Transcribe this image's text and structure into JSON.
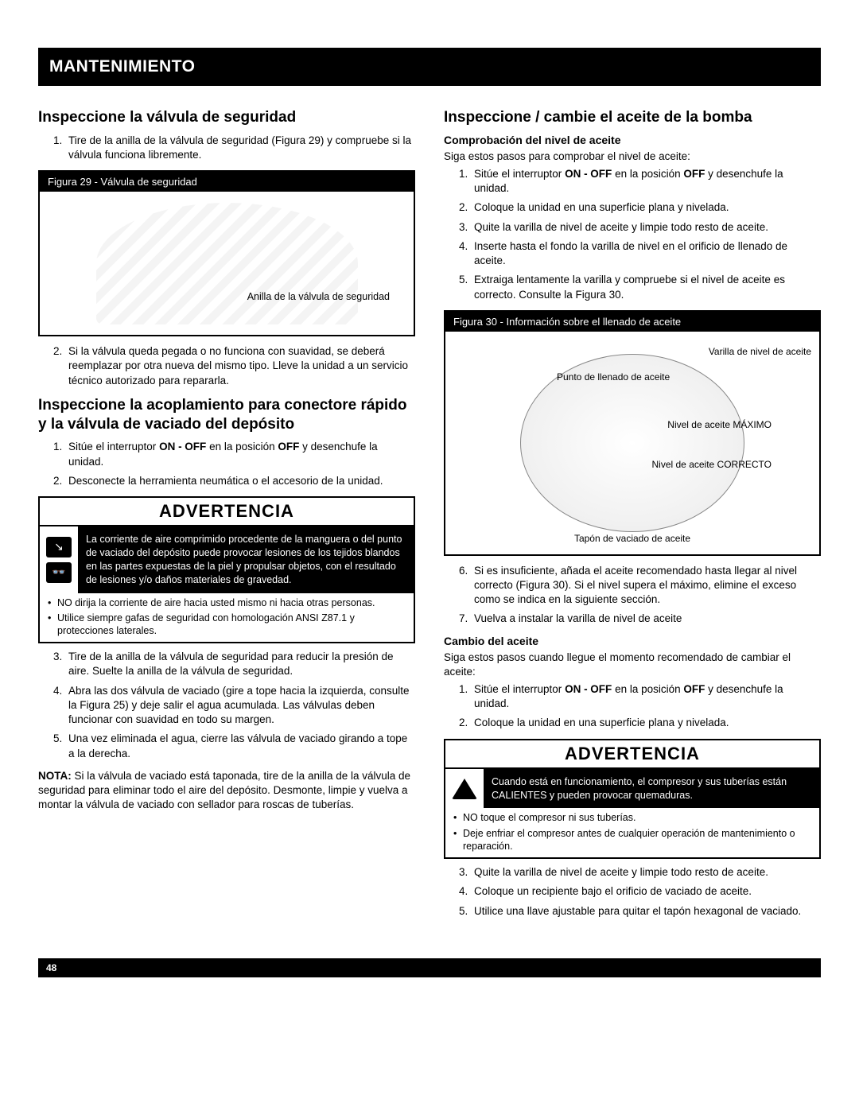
{
  "header": "MANTENIMIENTO",
  "left": {
    "h1": "Inspeccione la válvula de seguridad",
    "l1": [
      "Tire de la anilla de la válvula de seguridad (Figura 29) y compruebe si la válvula funciona libremente."
    ],
    "fig29_title": "Figura 29 - Válvula de seguridad",
    "fig29_label": "Anilla de la válvula de seguridad",
    "l1b": [
      "Si la válvula queda pegada o no funciona con suavidad, se deberá reemplazar por otra nueva del mismo tipo. Lleve la unidad a un servicio técnico autorizado para repararla."
    ],
    "h2": "Inspeccione la acoplamiento para conectore rápido y la válvula de vaciado del depósito",
    "l2": [
      "Sitúe el interruptor ON - OFF en la posición OFF y desenchufe la unidad.",
      "Desconecte la herramienta neumática o el accesorio de la unidad."
    ],
    "warn1_title": "ADVERTENCIA",
    "warn1_text": "La corriente de aire comprimido procedente de la manguera o del punto de vaciado del depósito puede provocar lesiones de los tejidos blandos en las partes expuestas de la piel y propulsar objetos, con el resultado de lesiones y/o daños materiales de gravedad.",
    "warn1_bullets": [
      "NO dirija la corriente de aire hacia usted mismo ni hacia otras personas.",
      "Utilice siempre gafas de seguridad con homologación ANSI Z87.1 y protecciones laterales."
    ],
    "l3": [
      "Tire de la anilla de la válvula de seguridad para reducir la presión de aire. Suelte la anilla de la válvula de seguridad.",
      "Abra las dos válvula de vaciado (gire a tope hacia la izquierda, consulte la Figura 25) y deje salir el agua acumulada. Las válvulas deben funcionar con suavidad en todo su margen.",
      "Una vez eliminada el agua, cierre las válvula de vaciado girando a tope a la derecha."
    ],
    "nota_label": "NOTA:",
    "nota": " Si la válvula de vaciado está taponada, tire de la anilla de la válvula de seguridad para eliminar todo el aire del depósito. Desmonte, limpie y vuelva a montar la válvula de vaciado con sellador para roscas de tuberías."
  },
  "right": {
    "h1": "Inspeccione / cambie el aceite de la bomba",
    "sub1": "Comprobación del nivel de aceite",
    "intro1": "Siga estos pasos para comprobar el nivel de aceite:",
    "r1": [
      "Sitúe el interruptor ON - OFF en la posición OFF y desenchufe la unidad.",
      "Coloque la unidad en una superficie plana y nivelada.",
      "Quite la varilla de nivel de aceite y limpie todo resto de aceite.",
      "Inserte hasta el fondo la varilla de nivel en el orificio de llenado de aceite.",
      "Extraiga lentamente la varilla y compruebe si el nivel de aceite es correcto. Consulte la Figura 30."
    ],
    "fig30_title": "Figura 30 - Información sobre el llenado de aceite",
    "fig30_labels": {
      "varilla": "Varilla de nivel de aceite",
      "punto": "Punto de llenado de aceite",
      "max": "Nivel de aceite MÁXIMO",
      "correcto": "Nivel de aceite CORRECTO",
      "tapon": "Tapón de vaciado de aceite"
    },
    "r2": [
      "Si es insuficiente, añada el aceite recomendado hasta llegar al nivel correcto (Figura 30). Si el nivel supera el máximo, elimine el exceso como se indica en la siguiente sección.",
      "Vuelva a instalar la varilla de nivel de aceite"
    ],
    "sub2": "Cambio del aceite",
    "intro2": "Siga estos pasos cuando llegue el momento recomendado de cambiar el aceite:",
    "r3": [
      "Sitúe el interruptor ON - OFF en la posición OFF y desenchufe la unidad.",
      "Coloque la unidad en una superficie plana y nivelada."
    ],
    "warn2_title": "ADVERTENCIA",
    "warn2_text": "Cuando está en funcionamiento, el compresor y sus tuberías están CALIENTES y pueden provocar quemaduras.",
    "warn2_bullets": [
      "NO toque el compresor ni sus tuberías.",
      "Deje enfriar el compresor antes de cualquier operación de mantenimiento o reparación."
    ],
    "r4": [
      "Quite la varilla de nivel de aceite y limpie todo resto de aceite.",
      "Coloque un recipiente bajo el orificio de vaciado de aceite.",
      "Utilice una llave ajustable para quitar el tapón hexagonal de vaciado."
    ]
  },
  "page": "48"
}
